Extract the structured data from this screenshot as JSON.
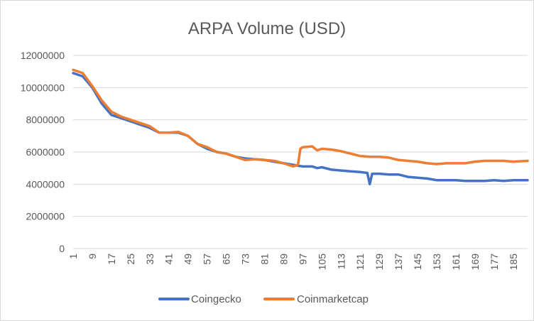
{
  "chart_data": {
    "type": "line",
    "title": "ARPA Volume (USD)",
    "xlabel": "",
    "ylabel": "",
    "ylim": [
      0,
      12000000
    ],
    "yticks": [
      0,
      2000000,
      4000000,
      6000000,
      8000000,
      10000000,
      12000000
    ],
    "xticks": [
      1,
      9,
      17,
      25,
      33,
      41,
      49,
      57,
      65,
      73,
      81,
      89,
      97,
      105,
      113,
      121,
      129,
      137,
      145,
      153,
      161,
      169,
      177,
      185
    ],
    "x_count": 191,
    "grid": "horizontal",
    "legend_position": "bottom",
    "series": [
      {
        "name": "Coingecko",
        "color": "#4472c4",
        "points": [
          [
            1,
            10900000
          ],
          [
            5,
            10700000
          ],
          [
            9,
            10000000
          ],
          [
            13,
            9000000
          ],
          [
            17,
            8300000
          ],
          [
            21,
            8100000
          ],
          [
            25,
            7900000
          ],
          [
            29,
            7700000
          ],
          [
            33,
            7500000
          ],
          [
            37,
            7200000
          ],
          [
            41,
            7200000
          ],
          [
            45,
            7200000
          ],
          [
            49,
            7000000
          ],
          [
            53,
            6500000
          ],
          [
            57,
            6200000
          ],
          [
            61,
            6000000
          ],
          [
            65,
            5900000
          ],
          [
            69,
            5700000
          ],
          [
            73,
            5600000
          ],
          [
            77,
            5550000
          ],
          [
            81,
            5500000
          ],
          [
            85,
            5400000
          ],
          [
            89,
            5300000
          ],
          [
            93,
            5200000
          ],
          [
            95,
            5150000
          ],
          [
            97,
            5100000
          ],
          [
            101,
            5100000
          ],
          [
            103,
            5000000
          ],
          [
            105,
            5050000
          ],
          [
            109,
            4900000
          ],
          [
            113,
            4850000
          ],
          [
            117,
            4800000
          ],
          [
            121,
            4750000
          ],
          [
            124,
            4700000
          ],
          [
            125,
            4000000
          ],
          [
            126,
            4650000
          ],
          [
            129,
            4650000
          ],
          [
            133,
            4600000
          ],
          [
            137,
            4600000
          ],
          [
            141,
            4450000
          ],
          [
            145,
            4400000
          ],
          [
            149,
            4350000
          ],
          [
            153,
            4250000
          ],
          [
            157,
            4250000
          ],
          [
            161,
            4250000
          ],
          [
            165,
            4200000
          ],
          [
            169,
            4200000
          ],
          [
            173,
            4200000
          ],
          [
            177,
            4250000
          ],
          [
            181,
            4200000
          ],
          [
            185,
            4250000
          ],
          [
            191,
            4250000
          ]
        ]
      },
      {
        "name": "Coinmarketcap",
        "color": "#ed7d31",
        "points": [
          [
            1,
            11100000
          ],
          [
            5,
            10900000
          ],
          [
            9,
            10100000
          ],
          [
            13,
            9200000
          ],
          [
            17,
            8500000
          ],
          [
            21,
            8200000
          ],
          [
            25,
            8000000
          ],
          [
            29,
            7800000
          ],
          [
            33,
            7600000
          ],
          [
            37,
            7200000
          ],
          [
            41,
            7200000
          ],
          [
            45,
            7250000
          ],
          [
            49,
            7000000
          ],
          [
            53,
            6500000
          ],
          [
            57,
            6300000
          ],
          [
            61,
            6000000
          ],
          [
            65,
            5900000
          ],
          [
            69,
            5700000
          ],
          [
            73,
            5500000
          ],
          [
            77,
            5550000
          ],
          [
            81,
            5500000
          ],
          [
            85,
            5450000
          ],
          [
            89,
            5300000
          ],
          [
            93,
            5100000
          ],
          [
            95,
            5200000
          ],
          [
            96,
            6200000
          ],
          [
            97,
            6300000
          ],
          [
            101,
            6350000
          ],
          [
            103,
            6100000
          ],
          [
            105,
            6200000
          ],
          [
            109,
            6150000
          ],
          [
            113,
            6050000
          ],
          [
            117,
            5900000
          ],
          [
            121,
            5750000
          ],
          [
            125,
            5700000
          ],
          [
            129,
            5700000
          ],
          [
            133,
            5650000
          ],
          [
            137,
            5500000
          ],
          [
            141,
            5450000
          ],
          [
            145,
            5400000
          ],
          [
            149,
            5300000
          ],
          [
            153,
            5250000
          ],
          [
            157,
            5300000
          ],
          [
            161,
            5300000
          ],
          [
            165,
            5300000
          ],
          [
            169,
            5400000
          ],
          [
            173,
            5450000
          ],
          [
            177,
            5450000
          ],
          [
            181,
            5450000
          ],
          [
            185,
            5400000
          ],
          [
            191,
            5450000
          ]
        ]
      }
    ]
  }
}
